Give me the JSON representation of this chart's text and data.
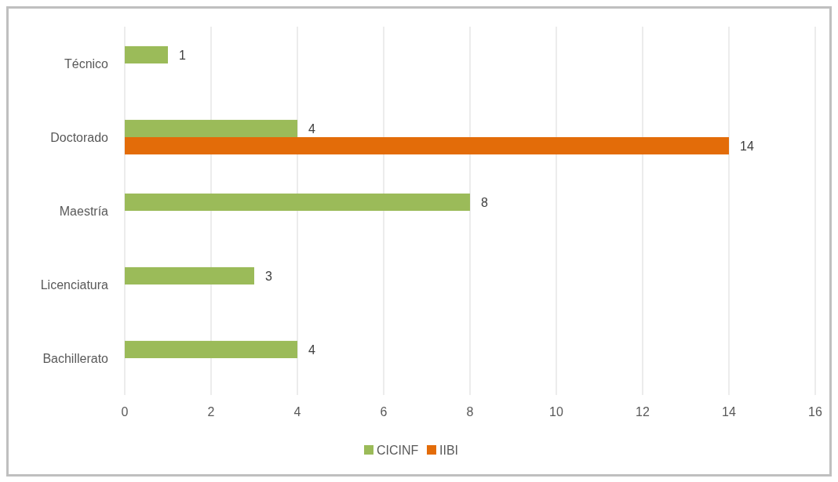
{
  "chart_data": {
    "type": "bar",
    "orientation": "horizontal",
    "categories": [
      "Técnico",
      "Doctorado",
      "Maestría",
      "Licenciatura",
      "Bachillerato"
    ],
    "series": [
      {
        "name": "CICINF",
        "color": "#9bbb59",
        "values": [
          1,
          4,
          8,
          3,
          4
        ]
      },
      {
        "name": "IIBI",
        "color": "#e36c09",
        "values": [
          null,
          14,
          null,
          null,
          null
        ]
      }
    ],
    "xlim": [
      0,
      16
    ],
    "xticks": [
      0,
      2,
      4,
      6,
      8,
      10,
      12,
      14,
      16
    ],
    "grid": "x",
    "legend": "bottom",
    "data_labels": true
  }
}
